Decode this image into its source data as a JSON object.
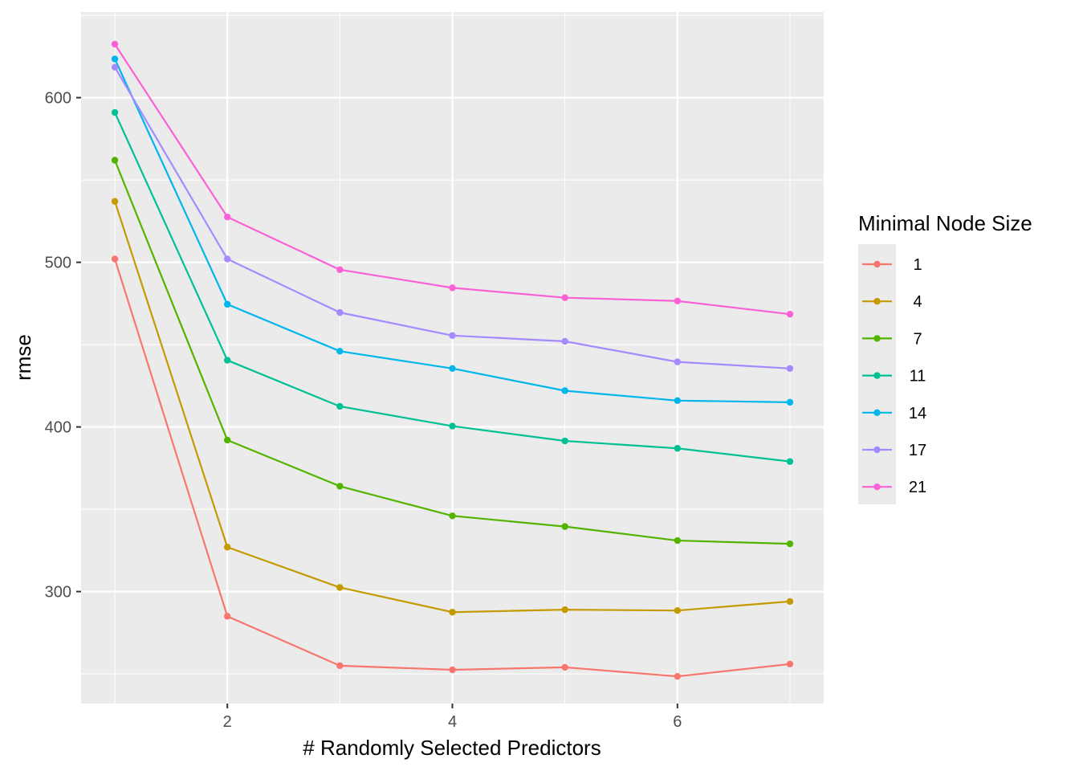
{
  "chart_data": {
    "type": "line",
    "xlabel": "# Randomly Selected Predictors",
    "ylabel": "rmse",
    "x": [
      1,
      2,
      3,
      4,
      5,
      6,
      7
    ],
    "xlim": [
      0.7,
      7.3
    ],
    "ylim": [
      232,
      652
    ],
    "xticks": [
      2,
      4,
      6
    ],
    "yticks": [
      300,
      400,
      500,
      600
    ],
    "grid": true,
    "legend": {
      "title": "Minimal Node Size",
      "position": "right"
    },
    "series": [
      {
        "name": "1",
        "color": "#F8766D",
        "values": [
          502,
          285,
          255,
          252.5,
          254,
          248.5,
          256
        ]
      },
      {
        "name": "4",
        "color": "#C49A00",
        "values": [
          537,
          327,
          302.5,
          287.5,
          289,
          288.5,
          294
        ]
      },
      {
        "name": "7",
        "color": "#53B400",
        "values": [
          562,
          392,
          364,
          346,
          339.5,
          331,
          329
        ]
      },
      {
        "name": "11",
        "color": "#00C094",
        "values": [
          591,
          440.5,
          412.5,
          400.5,
          391.5,
          387,
          379
        ]
      },
      {
        "name": "14",
        "color": "#00B6EB",
        "values": [
          623.5,
          474.5,
          446,
          435.5,
          422,
          416,
          415
        ]
      },
      {
        "name": "17",
        "color": "#A58AFF",
        "values": [
          618.5,
          502,
          469.5,
          455.5,
          452,
          439.5,
          435.5
        ]
      },
      {
        "name": "21",
        "color": "#FB61D7",
        "values": [
          632.5,
          527.5,
          495.5,
          484.5,
          478.5,
          476.5,
          468.5
        ]
      }
    ]
  }
}
